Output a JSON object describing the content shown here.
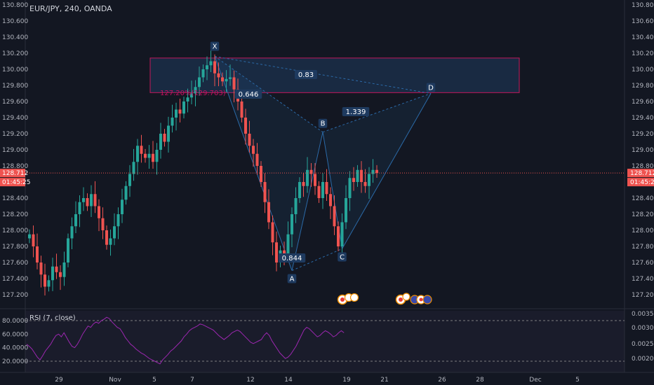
{
  "header": {
    "symbol_label": "EUR/JPY, 240, OANDA"
  },
  "colors": {
    "background": "#131722",
    "bull": "#26a69a",
    "bear": "#ef5350",
    "pattern_line": "#2b6aa8",
    "zone_fill": "#1f3b5c",
    "zone_border": "#c2185b",
    "rsi_line": "#9c27b0",
    "rsi_fill": "#2a1f3d",
    "price_badge": "#ef5350",
    "axis_text": "#b2b5be"
  },
  "price_axis": {
    "min": 127.0,
    "max": 130.9,
    "ticks": [
      "130.800",
      "130.600",
      "130.400",
      "130.200",
      "130.000",
      "129.800",
      "129.600",
      "129.400",
      "129.200",
      "129.000",
      "128.800",
      "128.400",
      "128.200",
      "128.000",
      "127.800",
      "127.600",
      "127.400",
      "127.200"
    ],
    "current_price": "128.712",
    "countdown": "01:45:25"
  },
  "time_axis": {
    "labels": [
      "29",
      "Nov",
      "5",
      "7",
      "12",
      "14",
      "19",
      "21",
      "26",
      "28",
      "Dec",
      "5"
    ]
  },
  "harmonic": {
    "points": [
      {
        "label": "X",
        "bar": 48,
        "price": 130.16
      },
      {
        "label": "A",
        "bar": 68,
        "price": 127.5
      },
      {
        "label": "B",
        "bar": 76,
        "price": 129.22
      },
      {
        "label": "C",
        "bar": 81,
        "price": 127.77
      },
      {
        "label": "D",
        "bar": 104,
        "price": 129.7
      }
    ],
    "ratios": {
      "xb": "0.646",
      "xd": "0.83",
      "bd": "1.339",
      "ac": "0.844"
    },
    "fib_label": "127.20%(129.703)",
    "zone": {
      "price_top": 130.14,
      "price_bottom": 129.71
    }
  },
  "rsi": {
    "label": "RSI (7, close)",
    "left_ticks": [
      "80.0000",
      "60.0000",
      "40.0000",
      "20.0000"
    ],
    "right_ticks": [
      "0.0035",
      "0.0030",
      "0.0025",
      "0.0020"
    ],
    "upper_band": 80,
    "lower_band": 20,
    "values": [
      45,
      42,
      38,
      32,
      26,
      22,
      28,
      35,
      40,
      45,
      52,
      58,
      60,
      56,
      62,
      55,
      48,
      42,
      40,
      45,
      52,
      60,
      66,
      72,
      70,
      75,
      78,
      76,
      80,
      82,
      85,
      83,
      78,
      74,
      70,
      68,
      62,
      55,
      50,
      45,
      42,
      38,
      35,
      32,
      30,
      27,
      24,
      22,
      20,
      18,
      16,
      22,
      26,
      30,
      35,
      38,
      42,
      46,
      50,
      56,
      60,
      65,
      68,
      70,
      72,
      75,
      74,
      72,
      70,
      68,
      66,
      62,
      58,
      55,
      52,
      55,
      58,
      62,
      64,
      66,
      64,
      60,
      56,
      52,
      48,
      46,
      48,
      50,
      52,
      58,
      62,
      58,
      50,
      44,
      38,
      32,
      28,
      24,
      26,
      30,
      36,
      42,
      50,
      58,
      66,
      70,
      68,
      64,
      60,
      56,
      58,
      62,
      65,
      63,
      60,
      56,
      58,
      62,
      65,
      62
    ]
  },
  "chart_data": {
    "type": "candlestick",
    "title": "EUR/JPY, 240, OANDA",
    "timeframe": "240",
    "ylim": [
      127.0,
      130.9
    ],
    "current_price": 128.712,
    "x_ticks": [
      "29",
      "Nov",
      "5",
      "7",
      "12",
      "14",
      "19",
      "21",
      "26",
      "28",
      "Dec",
      "5"
    ],
    "approx_close_path": [
      127.95,
      127.8,
      127.6,
      127.45,
      127.3,
      127.38,
      127.55,
      127.48,
      127.42,
      127.6,
      127.9,
      128.05,
      128.2,
      128.35,
      128.4,
      128.3,
      128.45,
      128.3,
      128.15,
      128.0,
      127.82,
      127.9,
      128.05,
      128.2,
      128.38,
      128.55,
      128.7,
      128.85,
      129.05,
      128.95,
      128.9,
      128.95,
      128.85,
      129.0,
      129.2,
      129.1,
      129.3,
      129.4,
      129.5,
      129.45,
      129.6,
      129.65,
      129.7,
      129.78,
      129.9,
      130.0,
      130.05,
      130.1,
      129.95,
      129.9,
      129.85,
      129.88,
      129.9,
      129.75,
      129.6,
      129.4,
      129.2,
      129.05,
      128.95,
      128.8,
      128.6,
      128.35,
      128.1,
      127.85,
      127.6,
      127.75,
      127.7,
      127.95,
      128.2,
      128.4,
      128.6,
      128.55,
      128.75,
      128.7,
      128.55,
      128.4,
      128.6,
      128.45,
      128.3,
      128.05,
      127.8,
      128.1,
      128.4,
      128.65,
      128.6,
      128.75,
      128.6,
      128.55,
      128.7,
      128.75,
      128.712
    ],
    "harmonic_pattern": {
      "points": {
        "X": 130.16,
        "A": 127.5,
        "B": 129.22,
        "C": 127.77,
        "D": 129.7
      },
      "ratios": {
        "XB": 0.646,
        "XD": 0.83,
        "BD": 1.339,
        "AC": 0.844
      },
      "projection": "127.20%(129.703)"
    },
    "rsi": {
      "period": 7,
      "source": "close",
      "overbought": 80,
      "oversold": 20
    }
  }
}
